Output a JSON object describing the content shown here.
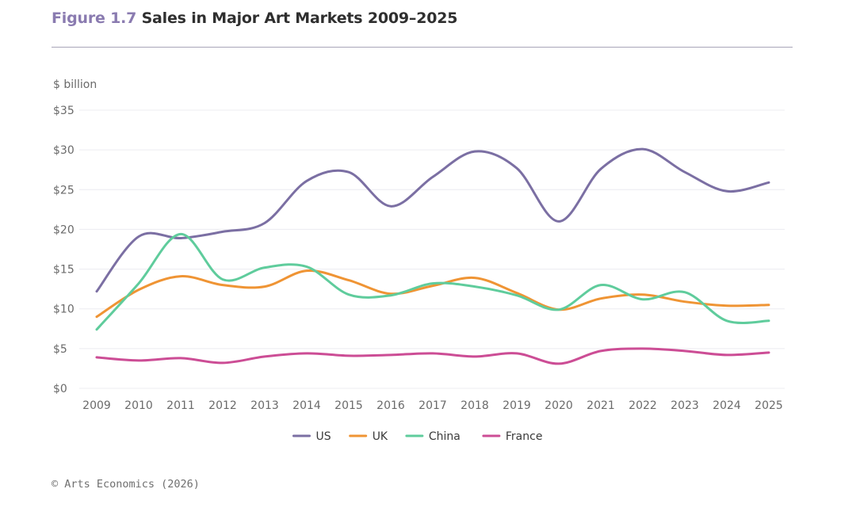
{
  "header": {
    "figure_label": "Figure 1.7",
    "title": "Sales in Major Art Markets 2009–2025"
  },
  "footer": {
    "source": "© Arts Economics (2026)"
  },
  "chart_data": {
    "type": "line",
    "title": "Sales in Major Art Markets 2009–2025",
    "ylabel": "$ billion",
    "xlabel": "",
    "x": [
      "2009",
      "2010",
      "2011",
      "2012",
      "2013",
      "2014",
      "2015",
      "2016",
      "2017",
      "2018",
      "2019",
      "2020",
      "2021",
      "2022",
      "2023",
      "2024",
      "2025"
    ],
    "ylim": [
      0,
      35
    ],
    "yticks": [
      0,
      5,
      10,
      15,
      20,
      25,
      30,
      35
    ],
    "ytick_labels": [
      "$0",
      "$5",
      "$10",
      "$15",
      "$20",
      "$25",
      "$30",
      "$35"
    ],
    "grid": true,
    "legend_position": "bottom-center",
    "series": [
      {
        "name": "US",
        "color": "#7b6fa3",
        "values": [
          12.2,
          19.1,
          18.9,
          19.7,
          20.8,
          26.1,
          27.2,
          22.9,
          26.6,
          29.8,
          27.7,
          21.0,
          27.6,
          30.1,
          27.2,
          24.8,
          25.9
        ]
      },
      {
        "name": "UK",
        "color": "#ef9434",
        "values": [
          9.0,
          12.4,
          14.1,
          13.0,
          12.8,
          14.8,
          13.6,
          11.9,
          12.9,
          13.9,
          12.0,
          9.9,
          11.3,
          11.8,
          10.9,
          10.4,
          10.5
        ]
      },
      {
        "name": "China",
        "color": "#5fcc9c",
        "values": [
          7.4,
          13.2,
          19.4,
          13.7,
          15.2,
          15.3,
          11.8,
          11.7,
          13.2,
          12.8,
          11.7,
          9.9,
          13.0,
          11.2,
          12.1,
          8.5,
          8.5
        ]
      },
      {
        "name": "France",
        "color": "#cc4d95",
        "values": [
          3.9,
          3.5,
          3.8,
          3.2,
          4.0,
          4.4,
          4.1,
          4.2,
          4.4,
          4.0,
          4.4,
          3.1,
          4.7,
          5.0,
          4.7,
          4.2,
          4.5
        ]
      }
    ]
  }
}
